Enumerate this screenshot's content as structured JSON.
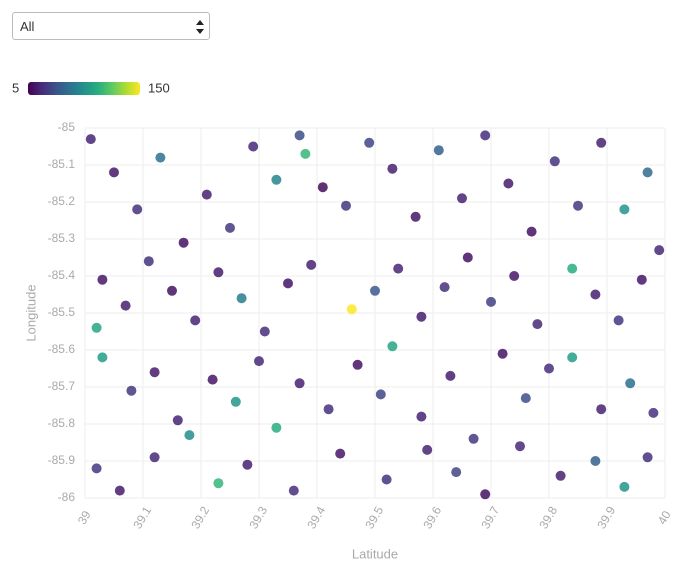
{
  "filter": {
    "selected": "All"
  },
  "chart_data": {
    "type": "scatter",
    "x_label": "Latitude",
    "y_label": "Longitude",
    "clim": [
      5,
      150
    ],
    "colorscale": [
      "#440154",
      "#472c7a",
      "#3b528b",
      "#2c728e",
      "#21918c",
      "#28ae80",
      "#5ec962",
      "#addc30",
      "#fde725"
    ],
    "xlim": [
      39,
      40
    ],
    "xticks": [
      39,
      39.1,
      39.2,
      39.3,
      39.4,
      39.5,
      39.6,
      39.7,
      39.8,
      39.9,
      40
    ],
    "ylim": [
      -86,
      -85
    ],
    "yticks": [
      -85,
      -85.1,
      -85.2,
      -85.3,
      -85.4,
      -85.5,
      -85.6,
      -85.7,
      -85.8,
      -85.9,
      -86
    ],
    "grid": true,
    "x": [
      39.01,
      39.05,
      39.09,
      39.13,
      39.17,
      39.21,
      39.25,
      39.29,
      39.33,
      39.37,
      39.38,
      39.41,
      39.45,
      39.49,
      39.53,
      39.57,
      39.61,
      39.65,
      39.69,
      39.73,
      39.77,
      39.81,
      39.85,
      39.89,
      39.93,
      39.97,
      39.99,
      39.03,
      39.07,
      39.11,
      39.15,
      39.19,
      39.23,
      39.27,
      39.31,
      39.35,
      39.39,
      39.46,
      39.5,
      39.54,
      39.58,
      39.62,
      39.66,
      39.7,
      39.74,
      39.78,
      39.84,
      39.88,
      39.92,
      39.96,
      39.02,
      39.03,
      39.08,
      39.12,
      39.16,
      39.18,
      39.22,
      39.26,
      39.3,
      39.33,
      39.37,
      39.42,
      39.47,
      39.51,
      39.53,
      39.58,
      39.63,
      39.67,
      39.72,
      39.76,
      39.8,
      39.84,
      39.89,
      39.94,
      39.98,
      39.02,
      39.06,
      39.12,
      39.23,
      39.28,
      39.36,
      39.44,
      39.52,
      39.59,
      39.64,
      39.69,
      39.75,
      39.82,
      39.88,
      39.93,
      39.97
    ],
    "y": [
      -85.03,
      -85.12,
      -85.22,
      -85.08,
      -85.31,
      -85.18,
      -85.27,
      -85.05,
      -85.14,
      -85.02,
      -85.07,
      -85.16,
      -85.21,
      -85.04,
      -85.11,
      -85.24,
      -85.06,
      -85.19,
      -85.02,
      -85.15,
      -85.28,
      -85.09,
      -85.21,
      -85.04,
      -85.22,
      -85.12,
      -85.33,
      -85.41,
      -85.48,
      -85.36,
      -85.44,
      -85.52,
      -85.39,
      -85.46,
      -85.55,
      -85.42,
      -85.37,
      -85.49,
      -85.44,
      -85.38,
      -85.51,
      -85.43,
      -85.35,
      -85.47,
      -85.4,
      -85.53,
      -85.38,
      -85.45,
      -85.52,
      -85.41,
      -85.54,
      -85.62,
      -85.71,
      -85.66,
      -85.79,
      -85.83,
      -85.68,
      -85.74,
      -85.63,
      -85.81,
      -85.69,
      -85.76,
      -85.64,
      -85.72,
      -85.59,
      -85.78,
      -85.67,
      -85.84,
      -85.61,
      -85.73,
      -85.65,
      -85.62,
      -85.76,
      -85.69,
      -85.77,
      -85.92,
      -85.98,
      -85.89,
      -85.96,
      -85.91,
      -85.98,
      -85.88,
      -85.95,
      -85.87,
      -85.93,
      -85.99,
      -85.86,
      -85.94,
      -85.9,
      -85.97,
      -85.89
    ],
    "color_values": [
      20,
      15,
      25,
      60,
      12,
      18,
      30,
      22,
      70,
      40,
      100,
      10,
      28,
      35,
      18,
      14,
      50,
      20,
      24,
      16,
      12,
      26,
      30,
      19,
      80,
      55,
      22,
      14,
      18,
      27,
      12,
      20,
      16,
      65,
      24,
      13,
      19,
      150,
      45,
      21,
      17,
      26,
      12,
      33,
      15,
      22,
      95,
      18,
      28,
      14,
      90,
      85,
      30,
      16,
      20,
      75,
      14,
      80,
      22,
      95,
      18,
      25,
      12,
      36,
      90,
      20,
      17,
      29,
      13,
      40,
      24,
      85,
      19,
      58,
      26,
      30,
      16,
      22,
      100,
      18,
      24,
      14,
      27,
      20,
      35,
      12,
      22,
      18,
      50,
      80,
      25
    ]
  }
}
